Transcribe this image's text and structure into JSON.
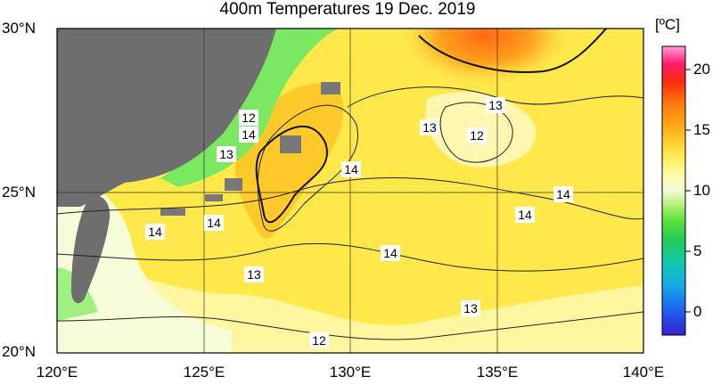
{
  "title": "400m Temperatures  19 Dec. 2019",
  "latitude_labels": [
    "30°N",
    "25°N",
    "20°N"
  ],
  "longitude_labels": [
    "120°E",
    "125°E",
    "130°E",
    "135°E",
    "140°E"
  ],
  "colorbar": {
    "unit": "[ºC]",
    "ticks": [
      "20",
      "15",
      "10",
      "5",
      "0"
    ],
    "colors": [
      "#3a1fd0",
      "#1f5cf0",
      "#16a9e8",
      "#12c9b0",
      "#22c957",
      "#5fe33a",
      "#b8f07a",
      "#f3fbd8",
      "#fffbb0",
      "#fff36a",
      "#ffd52e",
      "#ffa418",
      "#ff7a10",
      "#ff2a10",
      "#ff1a70",
      "#ff7ec8"
    ]
  },
  "contour_labels": [
    {
      "text": "13"
    },
    {
      "text": "12"
    },
    {
      "text": "13"
    },
    {
      "text": "12"
    },
    {
      "text": "14"
    },
    {
      "text": "13"
    },
    {
      "text": "14"
    },
    {
      "text": "14"
    },
    {
      "text": "14"
    },
    {
      "text": "14"
    },
    {
      "text": "14"
    },
    {
      "text": "14"
    },
    {
      "text": "13"
    },
    {
      "text": "13"
    },
    {
      "text": "12"
    }
  ]
}
